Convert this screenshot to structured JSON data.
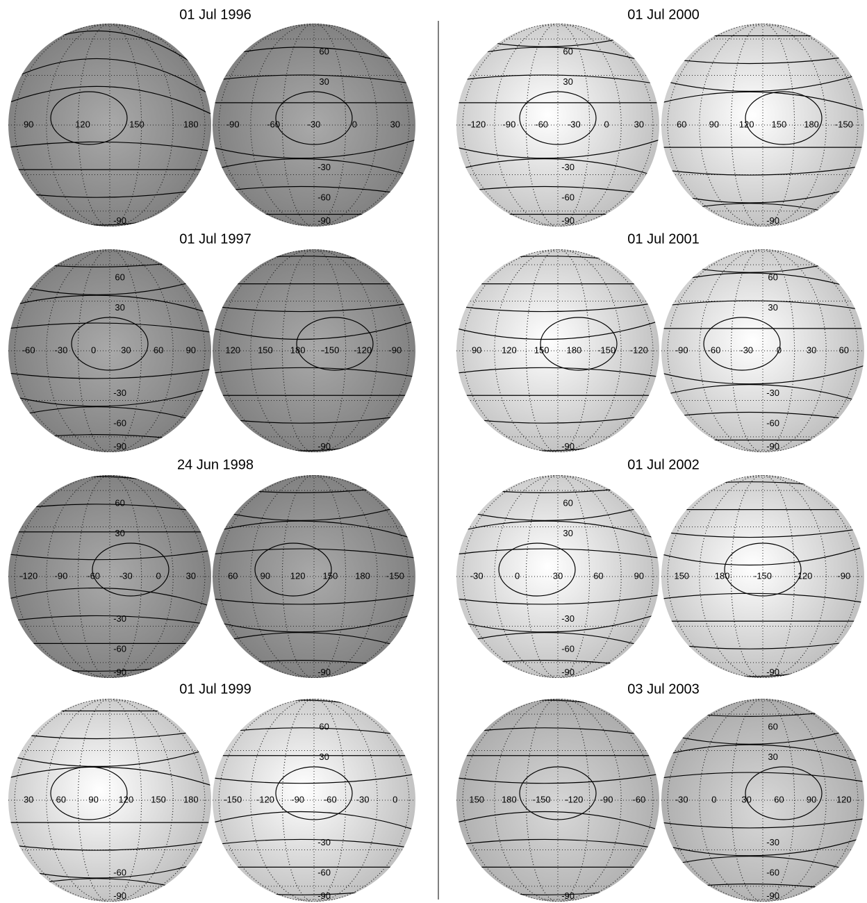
{
  "panels": [
    {
      "title": "01 Jul 1996",
      "left": {
        "lon_labels": [
          "90",
          "120",
          "150",
          "180"
        ],
        "lat_labels": [
          "-90"
        ]
      },
      "right": {
        "lon_labels": [
          "-90",
          "-60",
          "-30",
          "0",
          "30"
        ],
        "lat_labels": [
          "60",
          "30",
          "-30",
          "-60",
          "-90"
        ]
      }
    },
    {
      "title": "01 Jul 1997",
      "left": {
        "lon_labels": [
          "-60",
          "-30",
          "0",
          "30",
          "60",
          "90"
        ],
        "lat_labels": [
          "60",
          "30",
          "-30",
          "-60",
          "-90"
        ]
      },
      "right": {
        "lon_labels": [
          "120",
          "150",
          "180",
          "-150",
          "-120",
          "-90"
        ],
        "lat_labels": [
          "-90"
        ]
      }
    },
    {
      "title": "24 Jun 1998",
      "left": {
        "lon_labels": [
          "-120",
          "-90",
          "-60",
          "-30",
          "0",
          "30"
        ],
        "lat_labels": [
          "60",
          "30",
          "-30",
          "-60",
          "-90"
        ]
      },
      "right": {
        "lon_labels": [
          "60",
          "90",
          "120",
          "150",
          "180",
          "-150"
        ],
        "lat_labels": [
          "-90"
        ]
      }
    },
    {
      "title": "01 Jul 1999",
      "left": {
        "lon_labels": [
          "30",
          "60",
          "90",
          "120",
          "150",
          "180"
        ],
        "lat_labels": [
          "-60",
          "-90"
        ]
      },
      "right": {
        "lon_labels": [
          "-150",
          "-120",
          "-90",
          "-60",
          "-30",
          "0"
        ],
        "lat_labels": [
          "60",
          "30",
          "-30",
          "-60",
          "-90"
        ]
      }
    },
    {
      "title": "01 Jul 2000",
      "left": {
        "lon_labels": [
          "-120",
          "-90",
          "-60",
          "-30",
          "0",
          "30"
        ],
        "lat_labels": [
          "60",
          "30",
          "-30",
          "-60",
          "-90"
        ]
      },
      "right": {
        "lon_labels": [
          "60",
          "90",
          "120",
          "150",
          "180",
          "-150"
        ],
        "lat_labels": [
          "-90"
        ]
      }
    },
    {
      "title": "01 Jul 2001",
      "left": {
        "lon_labels": [
          "90",
          "120",
          "150",
          "180",
          "-150",
          "-120"
        ],
        "lat_labels": [
          "-90"
        ]
      },
      "right": {
        "lon_labels": [
          "-90",
          "-60",
          "-30",
          "0",
          "30",
          "60"
        ],
        "lat_labels": [
          "60",
          "30",
          "-30",
          "-60",
          "-90"
        ]
      }
    },
    {
      "title": "01 Jul 2002",
      "left": {
        "lon_labels": [
          "-30",
          "0",
          "30",
          "60",
          "90"
        ],
        "lat_labels": [
          "60",
          "30",
          "-30",
          "-60",
          "-90"
        ]
      },
      "right": {
        "lon_labels": [
          "150",
          "180",
          "-150",
          "-120",
          "-90"
        ],
        "lat_labels": [
          "-90"
        ]
      }
    },
    {
      "title": "03 Jul 2003",
      "left": {
        "lon_labels": [
          "150",
          "180",
          "-150",
          "-120",
          "-90",
          "-60"
        ],
        "lat_labels": [
          "-90"
        ]
      },
      "right": {
        "lon_labels": [
          "-30",
          "0",
          "30",
          "60",
          "90",
          "120"
        ],
        "lat_labels": [
          "60",
          "30",
          "-30",
          "-60",
          "-90"
        ]
      }
    }
  ]
}
